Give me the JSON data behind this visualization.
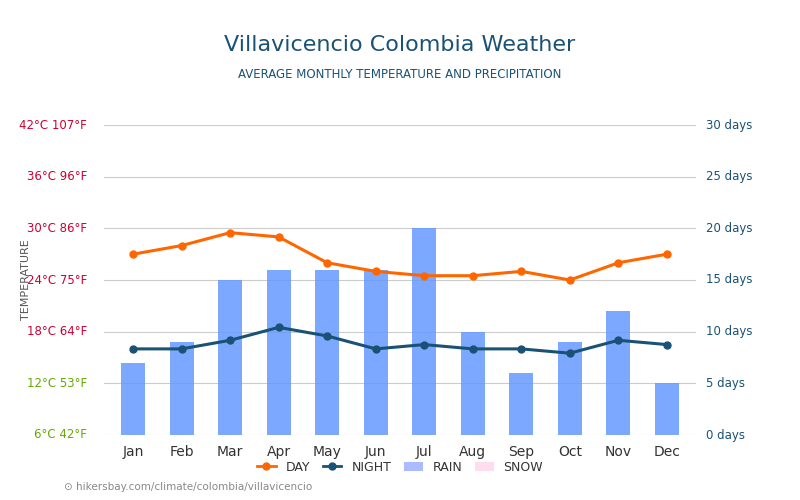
{
  "title": "Villavicencio Colombia Weather",
  "subtitle": "AVERAGE MONTHLY TEMPERATURE AND PRECIPITATION",
  "months": [
    "Jan",
    "Feb",
    "Mar",
    "Apr",
    "May",
    "Jun",
    "Jul",
    "Aug",
    "Sep",
    "Oct",
    "Nov",
    "Dec"
  ],
  "day_temps": [
    27,
    28,
    29.5,
    29,
    26,
    25,
    24.5,
    24.5,
    25,
    24,
    26,
    27
  ],
  "night_temps": [
    16,
    16,
    17,
    18.5,
    17.5,
    16,
    16.5,
    16,
    16,
    15.5,
    17,
    16.5
  ],
  "rain_days": [
    7,
    9,
    15,
    16,
    16,
    16,
    20,
    10,
    6,
    9,
    12,
    5
  ],
  "left_yticks_c": [
    6,
    12,
    18,
    24,
    30,
    36,
    42
  ],
  "left_yticks_f": [
    42,
    53,
    64,
    75,
    86,
    96,
    107
  ],
  "right_yticks_days": [
    0,
    5,
    10,
    15,
    20,
    25,
    30
  ],
  "temp_min": 6,
  "temp_max": 42,
  "rain_max": 30,
  "bar_color": "#6699ff",
  "day_color": "#ff6600",
  "night_color": "#1a5276",
  "title_color": "#1a5276",
  "subtitle_color": "#1a5276",
  "left_label_color_c": "#cc0033",
  "left_label_color_f": "#cc0033",
  "left_label_green": "#66aa00",
  "right_label_color": "#1a5276",
  "axis_label_color": "#555555",
  "background_color": "#ffffff",
  "url_text": "hikersbay.com/climate/colombia/villavicencio",
  "legend_day": "DAY",
  "legend_night": "NIGHT",
  "legend_rain": "RAIN",
  "legend_snow": "SNOW"
}
